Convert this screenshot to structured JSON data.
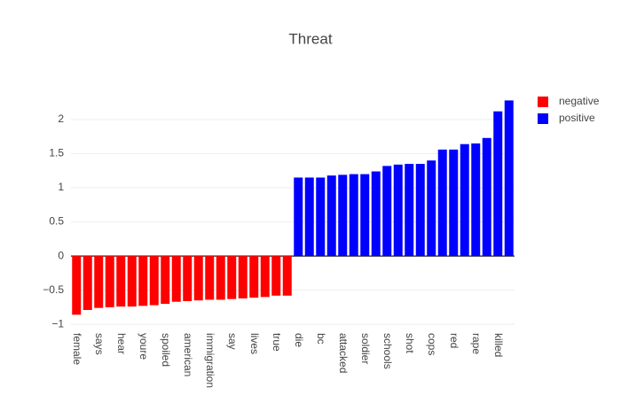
{
  "chart_data": {
    "type": "bar",
    "title": "Threat",
    "categories": [
      "female",
      null,
      "says",
      null,
      "hear",
      null,
      "youre",
      null,
      "spoiled",
      null,
      "american",
      null,
      "immigration",
      null,
      "say",
      null,
      "lives",
      null,
      "true",
      null,
      "die",
      null,
      "bc",
      null,
      "attacked",
      null,
      "soldier",
      null,
      "schools",
      null,
      "shot",
      null,
      "cops",
      null,
      "red",
      null,
      "rape",
      null,
      "killed",
      null
    ],
    "series": [
      {
        "name": "negative",
        "color": "#ff0000",
        "values": [
          -0.86,
          -0.79,
          -0.76,
          -0.75,
          -0.74,
          -0.74,
          -0.73,
          -0.72,
          -0.7,
          -0.67,
          -0.66,
          -0.65,
          -0.64,
          -0.64,
          -0.63,
          -0.62,
          -0.61,
          -0.6,
          -0.58,
          -0.58,
          null,
          null,
          null,
          null,
          null,
          null,
          null,
          null,
          null,
          null,
          null,
          null,
          null,
          null,
          null,
          null,
          null,
          null,
          null,
          null
        ]
      },
      {
        "name": "positive",
        "color": "#0000ff",
        "values": [
          null,
          null,
          null,
          null,
          null,
          null,
          null,
          null,
          null,
          null,
          null,
          null,
          null,
          null,
          null,
          null,
          null,
          null,
          null,
          null,
          1.15,
          1.15,
          1.15,
          1.18,
          1.19,
          1.2,
          1.2,
          1.24,
          1.32,
          1.34,
          1.35,
          1.35,
          1.4,
          1.56,
          1.56,
          1.64,
          1.65,
          1.73,
          2.12,
          2.28
        ]
      }
    ],
    "ylim": [
      -1.05,
      2.35
    ],
    "yticks": [
      {
        "value": -1,
        "label": "−1"
      },
      {
        "value": -0.5,
        "label": "−0.5"
      },
      0,
      0.5,
      1,
      1.5,
      2
    ],
    "grid": true,
    "legend": "top-right"
  }
}
